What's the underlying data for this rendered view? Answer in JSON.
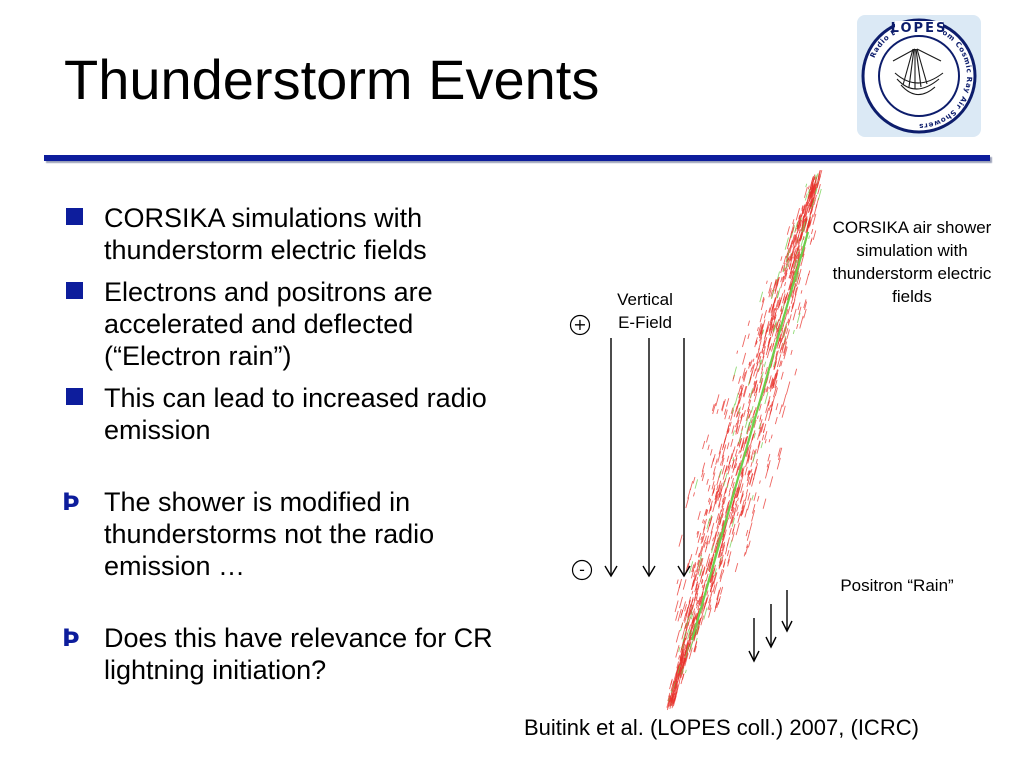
{
  "slide": {
    "title": "Thunderstorm Events",
    "colors": {
      "accent": "#0d1d9c",
      "simulation_red": "#e8322b",
      "simulation_green": "#6ccf4a"
    }
  },
  "logo": {
    "icon": "lopes-logo-icon",
    "text": "LOPES",
    "ring_text": "Radio Emission from Cosmic Ray Air Showers"
  },
  "bullets": [
    {
      "marker": "square",
      "text": "CORSIKA simulations with thunderstorm electric fields"
    },
    {
      "marker": "square",
      "text": "Electrons and positrons are accelerated and deflected (“Electron rain”)"
    },
    {
      "marker": "square",
      "text": "This can lead to increased radio emission"
    },
    {
      "marker": "implies",
      "glyph": "Þ",
      "text": "The shower is modified in thunderstorms not the radio emission …"
    },
    {
      "marker": "implies",
      "glyph": "Þ",
      "text": "Does this have relevance for CR lightning initiation?"
    }
  ],
  "figure": {
    "vertical_label": "Vertical\nE-Field",
    "plus": "+",
    "minus": "-",
    "caption": "CORSIKA air shower simulation with thunderstorm electric fields",
    "positron_label": "Positron “Rain”"
  },
  "citation": "Buitink et al. (LOPES coll.) 2007, (ICRC)"
}
